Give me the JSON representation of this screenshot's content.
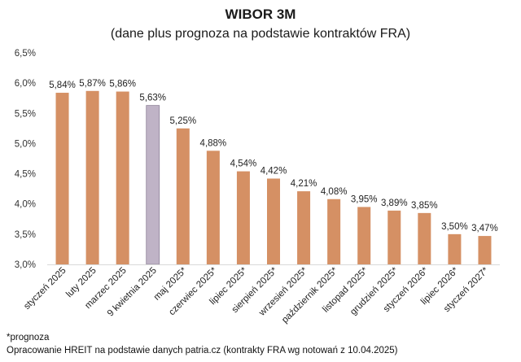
{
  "chart_data": {
    "type": "bar",
    "title": "WIBOR 3M",
    "subtitle": "(dane plus prognoza na podstawie kontraktów FRA)",
    "categories": [
      "styczeń 2025",
      "luty 2025",
      "marzec 2025",
      "9 kwietnia 2025",
      "maj 2025*",
      "czerwiec 2025*",
      "lipiec 2025*",
      "sierpień 2025*",
      "wrzesień 2025*",
      "październik 2025*",
      "listopad 2025*",
      "grudzień 2025*",
      "styczeń 2026*",
      "lipiec 2026*",
      "styczeń 2027*"
    ],
    "values": [
      5.84,
      5.87,
      5.86,
      5.63,
      5.25,
      4.88,
      4.54,
      4.42,
      4.21,
      4.08,
      3.95,
      3.89,
      3.85,
      3.5,
      3.47
    ],
    "value_labels": [
      "5,84%",
      "5,87%",
      "5,86%",
      "5,63%",
      "5,25%",
      "4,88%",
      "4,54%",
      "4,42%",
      "4,21%",
      "4,08%",
      "3,95%",
      "3,89%",
      "3,85%",
      "3,50%",
      "3,47%"
    ],
    "y_ticks": [
      3.0,
      3.5,
      4.0,
      4.5,
      5.0,
      5.5,
      6.0,
      6.5
    ],
    "y_tick_labels": [
      "3,0%",
      "3,5%",
      "4,0%",
      "4,5%",
      "5,0%",
      "5,5%",
      "6,0%",
      "6,5%"
    ],
    "ylim": [
      3.0,
      6.5
    ],
    "grid": false,
    "legend": "none",
    "colors": {
      "bar": "#D59064",
      "highlight": "#BFB3C6",
      "highlight_border": "#8E8399",
      "axis": "#D9D9D9"
    },
    "highlight_index": 3
  },
  "notes": {
    "line1": "*prognoza",
    "line2": "Opracowanie HREIT na podstawie danych patria.cz (kontrakty FRA wg notowań z 10.04.2025)"
  }
}
